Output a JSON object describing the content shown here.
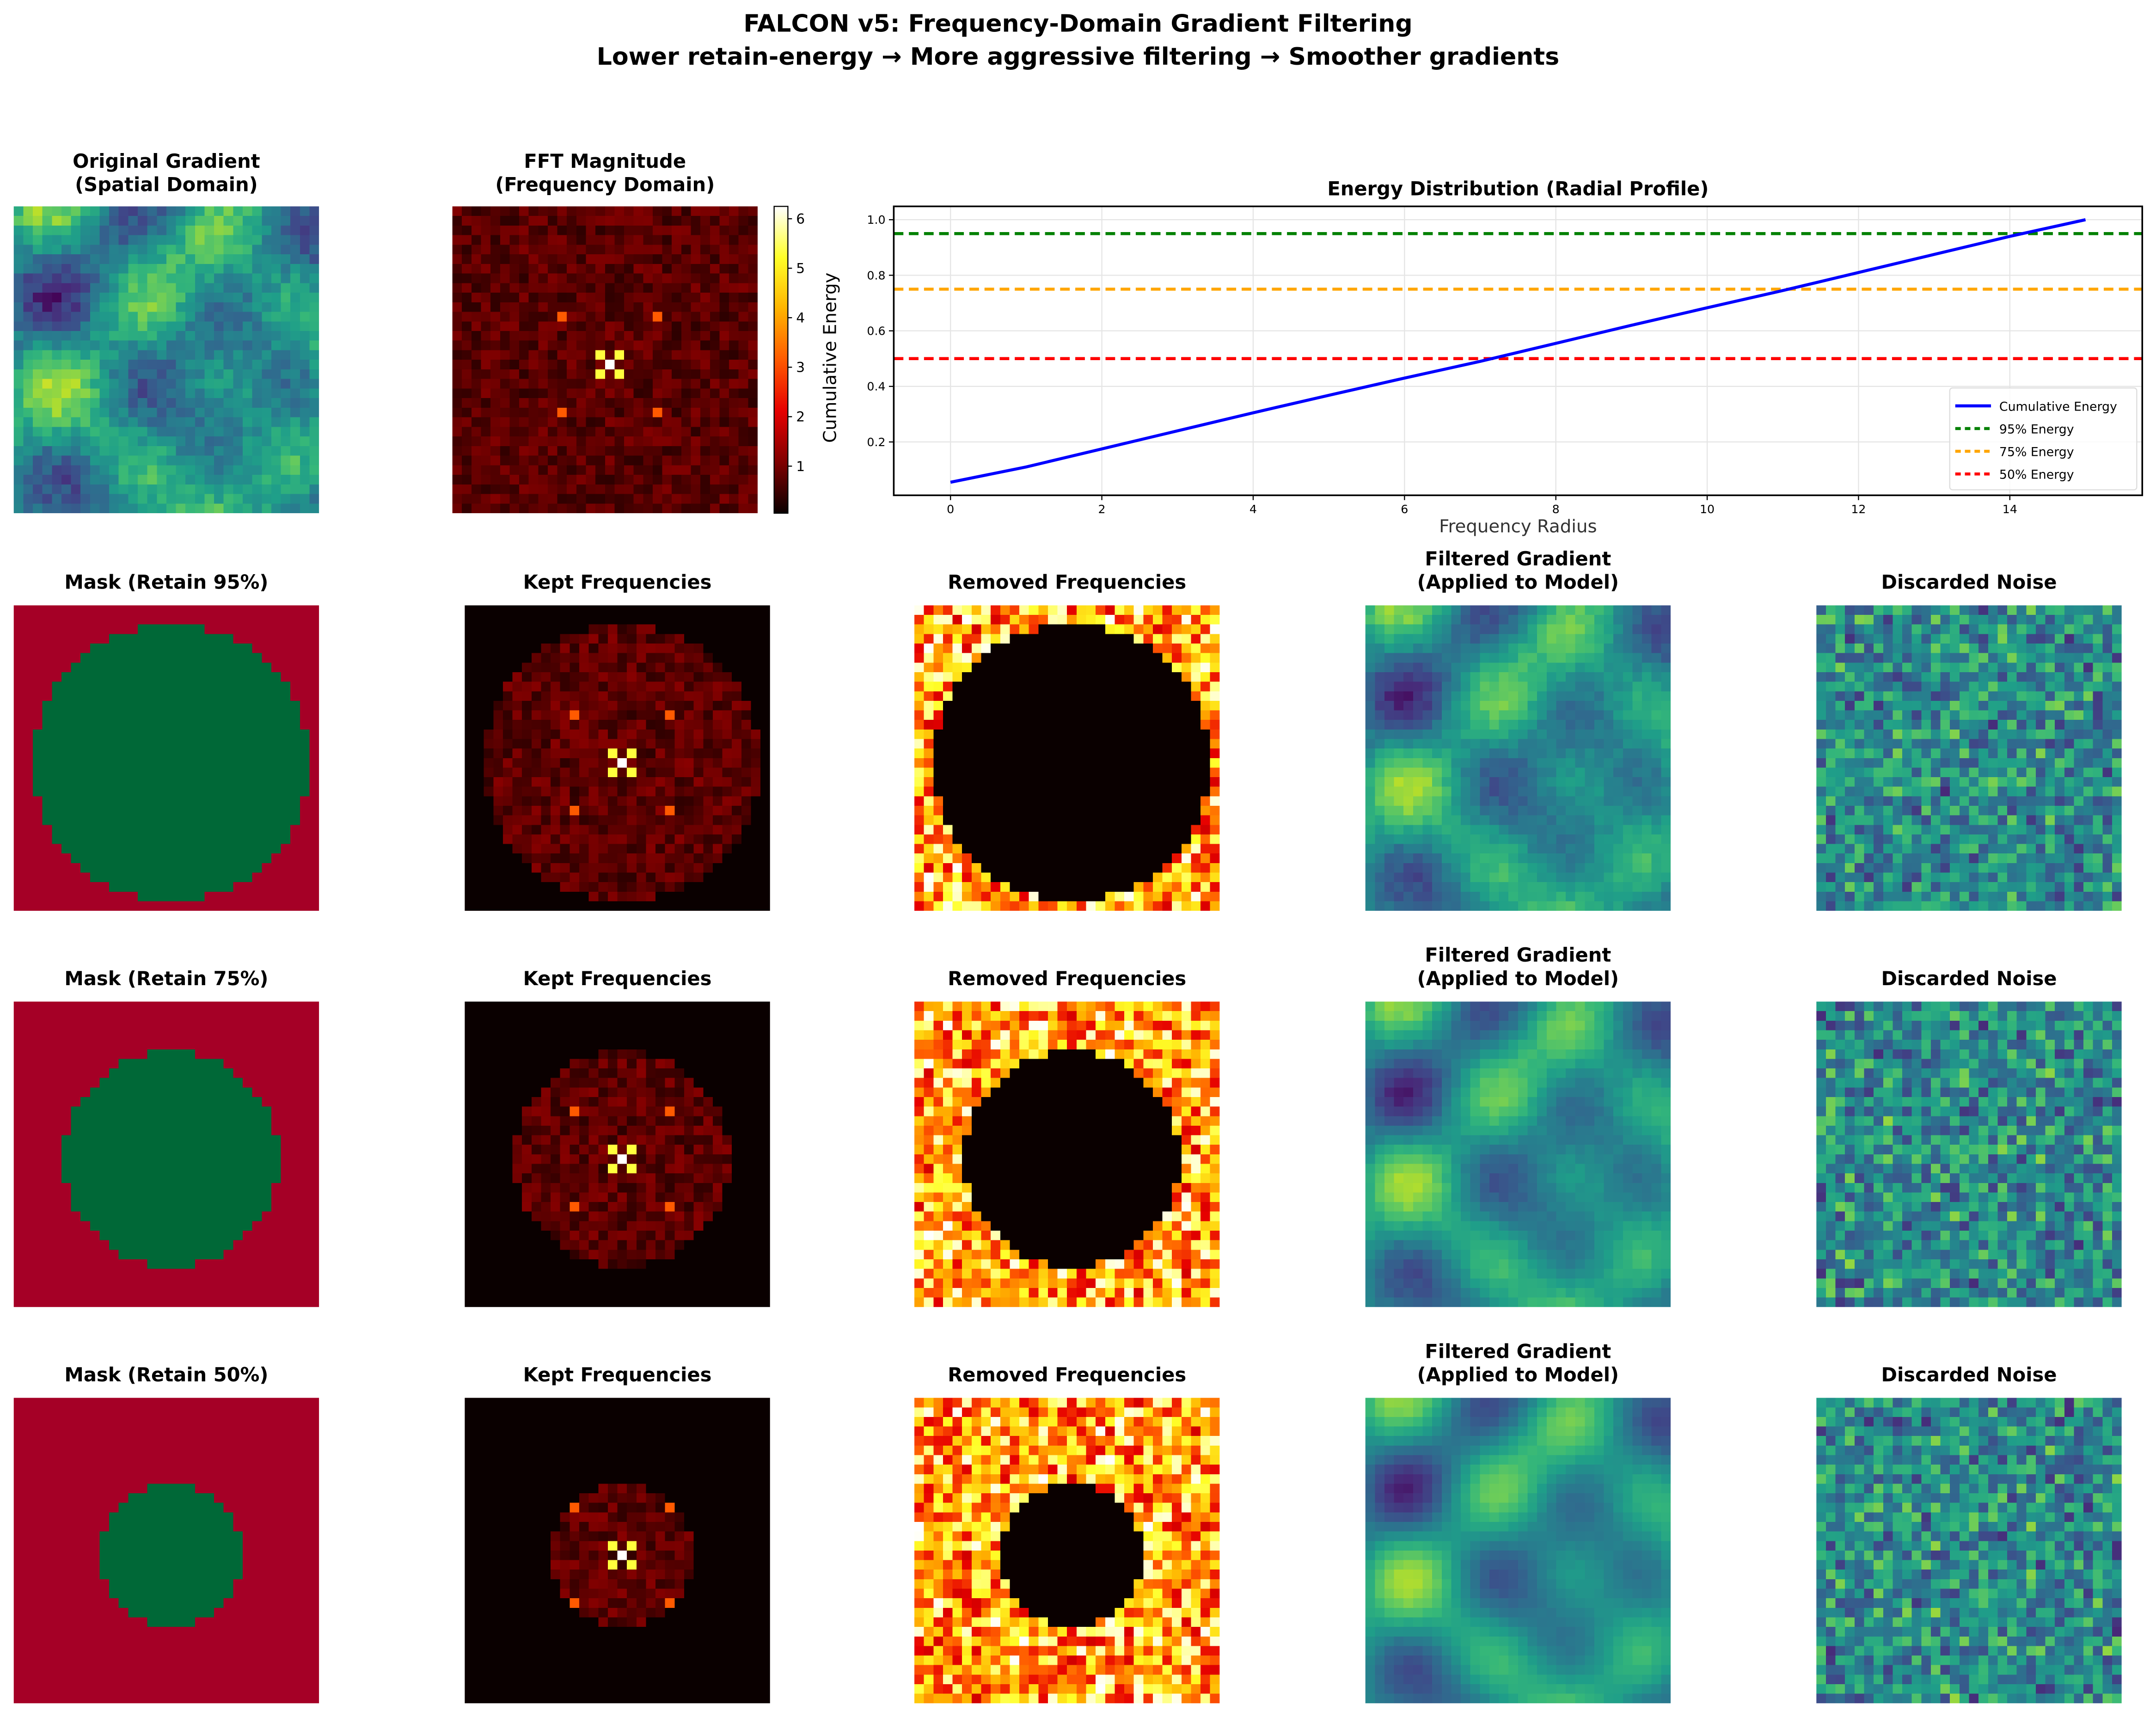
{
  "title": {
    "line1": "FALCON v5: Frequency-Domain Gradient Filtering",
    "line2": "Lower retain-energy → More aggressive filtering → Smoother gradients"
  },
  "row1": {
    "original_title_1": "Original Gradient",
    "original_title_2": "(Spatial Domain)",
    "fft_title_1": "FFT Magnitude",
    "fft_title_2": "(Frequency Domain)",
    "colorbar": {
      "ticks": [
        "1",
        "2",
        "3",
        "4",
        "5",
        "6"
      ],
      "tick_values": [
        1,
        2,
        3,
        4,
        5,
        6
      ],
      "range": [
        0.05,
        6.25
      ],
      "colormap": "hot"
    }
  },
  "rows": [
    {
      "retain": 95,
      "mask_title": "Mask (Retain 95%)",
      "kept_title": "Kept Frequencies",
      "removed_title": "Removed Frequencies",
      "filtered_title_1": "Filtered Gradient",
      "filtered_title_2": "(Applied to Model)",
      "noise_title": "Discarded Noise"
    },
    {
      "retain": 75,
      "mask_title": "Mask (Retain 75%)",
      "kept_title": "Kept Frequencies",
      "removed_title": "Removed Frequencies",
      "filtered_title_1": "Filtered Gradient",
      "filtered_title_2": "(Applied to Model)",
      "noise_title": "Discarded Noise"
    },
    {
      "retain": 50,
      "mask_title": "Mask (Retain 50%)",
      "kept_title": "Kept Frequencies",
      "removed_title": "Removed Frequencies",
      "filtered_title_1": "Filtered Gradient",
      "filtered_title_2": "(Applied to Model)",
      "noise_title": "Discarded Noise"
    }
  ],
  "colors": {
    "mask_keep": "#006837",
    "mask_remove": "#a50026"
  },
  "chart_data": {
    "type": "line",
    "title": "Energy Distribution (Radial Profile)",
    "xlabel": "Frequency Radius",
    "ylabel": "Cumulative Energy",
    "xlim": [
      -0.75,
      15.75
    ],
    "ylim": [
      0.008,
      1.048
    ],
    "xticks": [
      0,
      2,
      4,
      6,
      8,
      10,
      12,
      14
    ],
    "yticks": [
      0.2,
      0.4,
      0.6,
      0.8,
      1.0
    ],
    "xtick_labels": [
      "0",
      "2",
      "4",
      "6",
      "8",
      "10",
      "12",
      "14"
    ],
    "ytick_labels": [
      "0.2",
      "0.4",
      "0.6",
      "0.8",
      "1.0"
    ],
    "grid": true,
    "legend_position": "lower-right",
    "x": [
      0,
      1,
      2,
      3,
      4,
      5,
      6,
      7,
      8,
      9,
      10,
      11,
      12,
      13,
      14,
      15
    ],
    "series": [
      {
        "name": "Cumulative Energy",
        "color": "#0000ff",
        "style": "solid",
        "values": [
          0.055,
          0.11,
          0.175,
          0.24,
          0.305,
          0.368,
          0.43,
          0.49,
          0.555,
          0.62,
          0.683,
          0.745,
          0.81,
          0.875,
          0.94,
          1.0
        ]
      }
    ],
    "hlines": [
      {
        "name": "95% Energy",
        "y": 0.95,
        "color": "#008000",
        "style": "dashed"
      },
      {
        "name": "75% Energy",
        "y": 0.75,
        "color": "#ffa500",
        "style": "dashed"
      },
      {
        "name": "50% Energy",
        "y": 0.5,
        "color": "#ff0000",
        "style": "dashed"
      }
    ]
  }
}
